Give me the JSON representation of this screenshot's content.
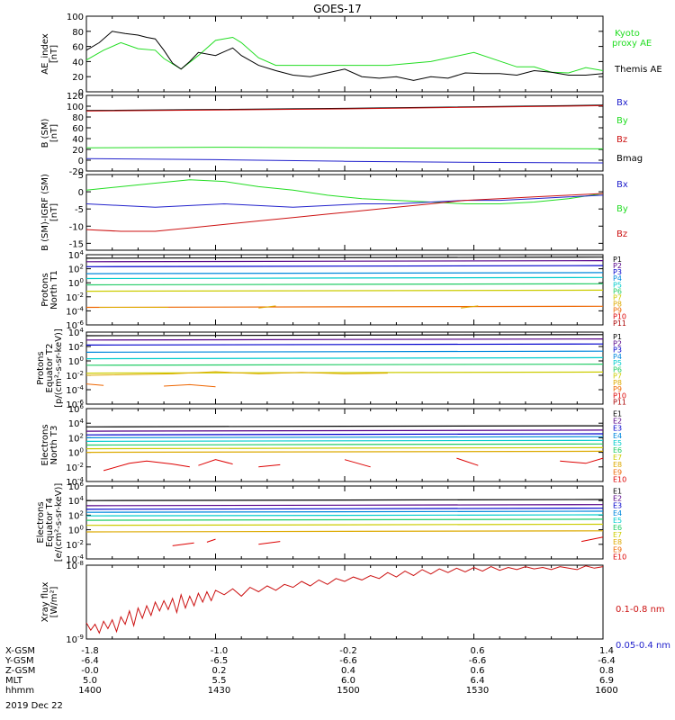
{
  "title": "GOES-17",
  "x_axis": {
    "rows": [
      {
        "label": "X-GSM",
        "values": [
          "-1.8",
          "-1.0",
          "-0.2",
          "0.6",
          "1.4"
        ]
      },
      {
        "label": "Y-GSM",
        "values": [
          "-6.4",
          "-6.5",
          "-6.6",
          "-6.6",
          "-6.4"
        ]
      },
      {
        "label": "Z-GSM",
        "values": [
          "-0.0",
          "0.2",
          "0.4",
          "0.6",
          "0.8"
        ]
      },
      {
        "label": "MLT",
        "values": [
          "5.0",
          "5.5",
          "6.0",
          "6.4",
          "6.9"
        ]
      },
      {
        "label": "hhmm",
        "values": [
          "1400",
          "1430",
          "1500",
          "1530",
          "1600"
        ]
      }
    ],
    "date": "2019 Dec 22",
    "range_min": [
      0,
      120
    ]
  },
  "colors": {
    "black": "#000000",
    "green": "#22dd22",
    "blue": "#2222cc",
    "red": "#cc1111",
    "P": [
      "#000000",
      "#550088",
      "#0000cc",
      "#0088dd",
      "#00cccc",
      "#22cc66",
      "#cccc00",
      "#ddaa00",
      "#ee6600",
      "#dd0000",
      "#aa0000"
    ],
    "E": [
      "#000000",
      "#550088",
      "#0000cc",
      "#0088dd",
      "#00cccc",
      "#22cc66",
      "#cccc00",
      "#ddaa00",
      "#ee6600",
      "#dd0000"
    ]
  },
  "chart_data": [
    {
      "id": "ae",
      "type": "line",
      "ylabel": "AE_index\n[nT]",
      "ylim": [
        0,
        100
      ],
      "yticks": [
        "0",
        "20",
        "40",
        "60",
        "80",
        "100"
      ],
      "legend": [
        "Kyoto\nproxy AE",
        "Themis AE"
      ],
      "series": [
        {
          "name": "Kyoto proxy AE",
          "color": "green",
          "x": [
            0,
            4,
            8,
            12,
            16,
            18,
            22,
            26,
            30,
            34,
            36,
            40,
            44,
            48,
            52,
            56,
            60,
            64,
            70,
            80,
            90,
            100,
            104,
            108,
            112,
            116,
            120
          ],
          "y": [
            42,
            55,
            65,
            57,
            55,
            44,
            30,
            48,
            68,
            72,
            65,
            45,
            35,
            35,
            35,
            35,
            35,
            35,
            35,
            40,
            52,
            33,
            33,
            26,
            25,
            32,
            28
          ]
        },
        {
          "name": "Themis AE",
          "color": "black",
          "x": [
            0,
            3,
            6,
            9,
            12,
            14,
            16,
            18,
            20,
            22,
            24,
            26,
            30,
            34,
            36,
            40,
            44,
            48,
            52,
            56,
            60,
            64,
            68,
            72,
            76,
            80,
            84,
            88,
            92,
            96,
            100,
            104,
            108,
            112,
            116,
            120
          ],
          "y": [
            55,
            65,
            80,
            77,
            75,
            72,
            70,
            55,
            38,
            30,
            40,
            52,
            48,
            58,
            48,
            35,
            28,
            22,
            20,
            25,
            30,
            20,
            18,
            20,
            15,
            20,
            18,
            25,
            24,
            24,
            22,
            28,
            26,
            22,
            22,
            24
          ]
        }
      ]
    },
    {
      "id": "bsm",
      "type": "line",
      "ylabel": "B (SM)\n[nT]",
      "ylim": [
        -20,
        120
      ],
      "yticks": [
        "-20",
        "0",
        "20",
        "40",
        "60",
        "80",
        "100",
        "120"
      ],
      "legend": [
        "Bx",
        "By",
        "Bz",
        "Bmag"
      ],
      "series": [
        {
          "name": "Bmag",
          "color": "black",
          "x": [
            0,
            60,
            120
          ],
          "y": [
            92,
            96,
            102
          ]
        },
        {
          "name": "Bz",
          "color": "red",
          "x": [
            0,
            60,
            120
          ],
          "y": [
            91,
            95,
            101
          ]
        },
        {
          "name": "By",
          "color": "green",
          "x": [
            0,
            30,
            60,
            90,
            120
          ],
          "y": [
            23,
            24,
            23,
            22,
            21
          ]
        },
        {
          "name": "Bx",
          "color": "blue",
          "x": [
            0,
            30,
            60,
            90,
            120
          ],
          "y": [
            3,
            1,
            -2,
            -4,
            -5
          ]
        }
      ]
    },
    {
      "id": "bdiff",
      "type": "line",
      "ylabel": "B (SM)-IGRF (SM)\n[nT]",
      "ylim": [
        -17,
        5
      ],
      "yticks": [
        "-15",
        "-10",
        "-5",
        "0",
        "5"
      ],
      "legend": [
        "Bx",
        "By",
        "Bz"
      ],
      "series": [
        {
          "name": "By",
          "color": "green",
          "x": [
            0,
            8,
            16,
            24,
            32,
            40,
            48,
            56,
            64,
            72,
            80,
            88,
            96,
            104,
            112,
            120
          ],
          "y": [
            0.5,
            1.5,
            2.5,
            3.5,
            3.0,
            1.5,
            0.5,
            -1.0,
            -2.0,
            -2.5,
            -3.0,
            -3.5,
            -3.5,
            -3.0,
            -2.0,
            -0.5
          ]
        },
        {
          "name": "Bx",
          "color": "blue",
          "x": [
            0,
            8,
            16,
            24,
            32,
            40,
            48,
            56,
            64,
            72,
            80,
            88,
            96,
            104,
            112,
            120
          ],
          "y": [
            -3.5,
            -4.0,
            -4.5,
            -4.0,
            -3.5,
            -4.0,
            -4.5,
            -4.0,
            -3.5,
            -3.5,
            -3.0,
            -2.5,
            -2.5,
            -2.0,
            -1.5,
            -1.0
          ]
        },
        {
          "name": "Bz",
          "color": "red",
          "x": [
            0,
            8,
            16,
            24,
            32,
            40,
            48,
            56,
            64,
            72,
            80,
            88,
            96,
            104,
            112,
            120
          ],
          "y": [
            -11.0,
            -11.5,
            -11.5,
            -10.5,
            -9.5,
            -8.5,
            -7.5,
            -6.5,
            -5.5,
            -4.5,
            -3.5,
            -2.5,
            -2.0,
            -1.5,
            -1.0,
            -0.5
          ]
        }
      ]
    },
    {
      "id": "pt1",
      "type": "line",
      "ylabel": "Protons\nNorth T1",
      "log": true,
      "ylim": [
        -6,
        4
      ],
      "yticks": [
        "10^4",
        "10^2",
        "10^0",
        "10^-2",
        "10^-4",
        "10^-6"
      ],
      "legend": [
        "P1",
        "P2",
        "P3",
        "P4",
        "P5",
        "P6",
        "P7",
        "P8",
        "P9",
        "P10",
        "P11"
      ],
      "levels": [
        3.5,
        3.0,
        2.3,
        1.3,
        0.6,
        -0.3,
        -1.2,
        null,
        -3.5,
        null,
        null
      ],
      "segments": [
        {
          "color_index": 7,
          "x": [
            3,
            19
          ],
          "y": [
            -3.5,
            -3.5
          ]
        },
        {
          "color_index": 7,
          "x": [
            40,
            44
          ],
          "y": [
            -3.6,
            -3.3
          ]
        },
        {
          "color_index": 7,
          "x": [
            87,
            91
          ],
          "y": [
            -3.6,
            -3.3
          ]
        }
      ]
    },
    {
      "id": "pt2",
      "type": "line",
      "ylabel": "Protons\nEquator T2\n[p/(cm²-s-sr-keV)]",
      "log": true,
      "ylim": [
        -6,
        4
      ],
      "yticks": [
        "10^4",
        "10^2",
        "10^0",
        "10^-2",
        "10^-4",
        "10^-6"
      ],
      "legend": [
        "P1",
        "P2",
        "P3",
        "P4",
        "P5",
        "P6",
        "P7",
        "P8",
        "P9",
        "P10",
        "P11"
      ],
      "levels": [
        3.5,
        2.9,
        2.2,
        1.2,
        0.3,
        -0.6,
        -1.7,
        null,
        null,
        null,
        null
      ],
      "segments": [
        {
          "color_index": 7,
          "x": [
            0,
            20,
            30,
            40,
            50,
            60,
            70
          ],
          "y": [
            -2.0,
            -1.8,
            -1.5,
            -1.8,
            -1.6,
            -1.8,
            -1.7
          ]
        },
        {
          "color_index": 8,
          "x": [
            0,
            4
          ],
          "y": [
            -3.2,
            -3.4
          ]
        },
        {
          "color_index": 8,
          "x": [
            18,
            24,
            30
          ],
          "y": [
            -3.5,
            -3.3,
            -3.6
          ]
        }
      ]
    },
    {
      "id": "et3",
      "type": "line",
      "ylabel": "Electrons\nNorth T3",
      "log": true,
      "ylim": [
        -4,
        6
      ],
      "yticks": [
        "10^6",
        "10^4",
        "10^2",
        "10^0",
        "10^-2",
        "10^-4"
      ],
      "legend": [
        "E1",
        "E2",
        "E3",
        "E4",
        "E5",
        "E6",
        "E7",
        "E8",
        "E9",
        "E10"
      ],
      "levels": [
        3.5,
        2.9,
        2.4,
        2.0,
        1.5,
        1.0,
        0.5,
        0.0,
        null,
        null
      ],
      "segments": [
        {
          "color_index": 9,
          "x": [
            4,
            10,
            14,
            20,
            24
          ],
          "y": [
            -2.5,
            -1.5,
            -1.2,
            -1.6,
            -2.0
          ]
        },
        {
          "color_index": 9,
          "x": [
            26,
            30,
            34
          ],
          "y": [
            -1.8,
            -1.0,
            -1.6
          ]
        },
        {
          "color_index": 9,
          "x": [
            40,
            45
          ],
          "y": [
            -2.0,
            -1.7
          ]
        },
        {
          "color_index": 9,
          "x": [
            60,
            66
          ],
          "y": [
            -1.0,
            -2.0
          ]
        },
        {
          "color_index": 9,
          "x": [
            86,
            91
          ],
          "y": [
            -0.8,
            -1.8
          ]
        },
        {
          "color_index": 9,
          "x": [
            110,
            116,
            120
          ],
          "y": [
            -1.2,
            -1.5,
            -0.8
          ]
        }
      ]
    },
    {
      "id": "et4",
      "type": "line",
      "ylabel": "Electrons\nEquator T4\n[e/(cm²-s-sr-keV)]",
      "log": true,
      "ylim": [
        -4,
        6
      ],
      "yticks": [
        "10^6",
        "10^4",
        "10^2",
        "10^0",
        "10^-2",
        "10^-4"
      ],
      "legend": [
        "E1",
        "E2",
        "E3",
        "E4",
        "E5",
        "E6",
        "E7",
        "E8",
        "E9",
        "E10"
      ],
      "levels": [
        4.0,
        3.3,
        2.8,
        2.4,
        1.9,
        1.3,
        0.6,
        -0.3,
        null,
        null
      ],
      "segments": [
        {
          "color_index": 9,
          "x": [
            20,
            25
          ],
          "y": [
            -2.2,
            -1.8
          ]
        },
        {
          "color_index": 9,
          "x": [
            28,
            30
          ],
          "y": [
            -1.7,
            -1.3
          ]
        },
        {
          "color_index": 9,
          "x": [
            40,
            45
          ],
          "y": [
            -2.0,
            -1.6
          ]
        },
        {
          "color_index": 9,
          "x": [
            115,
            120
          ],
          "y": [
            -1.6,
            -1.0
          ]
        }
      ]
    },
    {
      "id": "xray",
      "type": "line",
      "ylabel": "Xray flux\n[W/m²]",
      "log": true,
      "ylim": [
        -9,
        -8
      ],
      "yticks": [
        "10^-8",
        "10^-9"
      ],
      "legend": [
        "0.1-0.8 nm",
        "0.05-0.4 nm"
      ],
      "series": [
        {
          "name": "0.1-0.8 nm",
          "color": "red",
          "x": [
            0,
            1,
            2,
            3,
            4,
            5,
            6,
            7,
            8,
            9,
            10,
            11,
            12,
            13,
            14,
            15,
            16,
            17,
            18,
            19,
            20,
            21,
            22,
            23,
            24,
            25,
            26,
            27,
            28,
            29,
            30,
            32,
            34,
            36,
            38,
            40,
            42,
            44,
            46,
            48,
            50,
            52,
            54,
            56,
            58,
            60,
            62,
            64,
            66,
            68,
            70,
            72,
            74,
            76,
            78,
            80,
            82,
            84,
            86,
            88,
            90,
            92,
            94,
            96,
            98,
            100,
            102,
            104,
            106,
            108,
            110,
            112,
            114,
            116,
            118,
            120
          ],
          "y": [
            -8.78,
            -8.88,
            -8.8,
            -8.92,
            -8.76,
            -8.86,
            -8.74,
            -8.9,
            -8.7,
            -8.8,
            -8.62,
            -8.82,
            -8.58,
            -8.72,
            -8.55,
            -8.68,
            -8.5,
            -8.62,
            -8.48,
            -8.6,
            -8.45,
            -8.64,
            -8.4,
            -8.58,
            -8.42,
            -8.55,
            -8.38,
            -8.5,
            -8.36,
            -8.48,
            -8.34,
            -8.4,
            -8.32,
            -8.42,
            -8.3,
            -8.36,
            -8.28,
            -8.34,
            -8.26,
            -8.3,
            -8.22,
            -8.28,
            -8.2,
            -8.26,
            -8.18,
            -8.22,
            -8.16,
            -8.2,
            -8.14,
            -8.18,
            -8.1,
            -8.16,
            -8.08,
            -8.14,
            -8.06,
            -8.12,
            -8.05,
            -8.1,
            -8.04,
            -8.09,
            -8.03,
            -8.08,
            -8.02,
            -8.07,
            -8.03,
            -8.06,
            -8.02,
            -8.05,
            -8.03,
            -8.06,
            -8.02,
            -8.04,
            -8.06,
            -8.01,
            -8.04,
            -8.02
          ]
        },
        {
          "name": "0.05-0.4 nm",
          "color": "blue",
          "x": [],
          "y": []
        }
      ]
    }
  ]
}
